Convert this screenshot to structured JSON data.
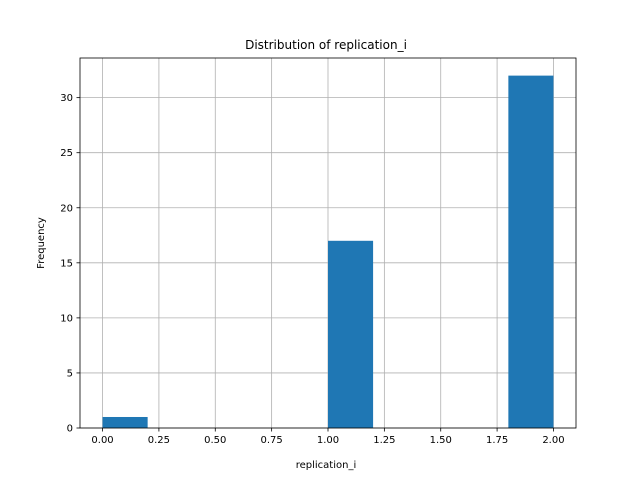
{
  "chart_data": {
    "type": "bar",
    "title": "Distribution of  replication_i",
    "xlabel": "replication_i",
    "ylabel": "Frequency",
    "xlim": [
      -0.1,
      2.1
    ],
    "ylim": [
      0,
      33.6
    ],
    "xticks": [
      0.0,
      0.25,
      0.5,
      0.75,
      1.0,
      1.25,
      1.5,
      1.75,
      2.0
    ],
    "xtick_labels": [
      "0.00",
      "0.25",
      "0.50",
      "0.75",
      "1.00",
      "1.25",
      "1.50",
      "1.75",
      "2.00"
    ],
    "yticks": [
      0,
      5,
      10,
      15,
      20,
      25,
      30
    ],
    "ytick_labels": [
      "0",
      "5",
      "10",
      "15",
      "20",
      "25",
      "30"
    ],
    "grid": true,
    "bins": [
      {
        "x0": 0.0,
        "x1": 0.2,
        "value": 1
      },
      {
        "x0": 0.2,
        "x1": 0.4,
        "value": 0
      },
      {
        "x0": 0.4,
        "x1": 0.6,
        "value": 0
      },
      {
        "x0": 0.6,
        "x1": 0.8,
        "value": 0
      },
      {
        "x0": 0.8,
        "x1": 1.0,
        "value": 0
      },
      {
        "x0": 1.0,
        "x1": 1.2,
        "value": 17
      },
      {
        "x0": 1.2,
        "x1": 1.4,
        "value": 0
      },
      {
        "x0": 1.4,
        "x1": 1.6,
        "value": 0
      },
      {
        "x0": 1.6,
        "x1": 1.8,
        "value": 0
      },
      {
        "x0": 1.8,
        "x1": 2.0,
        "value": 32
      }
    ],
    "bar_color": "#1f77b4"
  }
}
